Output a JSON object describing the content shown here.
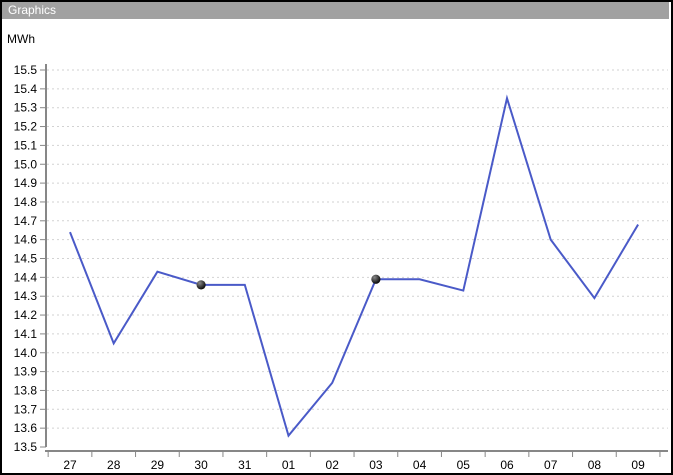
{
  "window": {
    "title": "Graphics",
    "titlebar_color": "#a1a1a1",
    "border_color": "#000000"
  },
  "chart_data": {
    "type": "line",
    "title": "Graphics",
    "unit_label": "MWh",
    "categories": [
      "27",
      "28",
      "29",
      "30",
      "31",
      "01",
      "02",
      "03",
      "04",
      "05",
      "06",
      "07",
      "08",
      "09"
    ],
    "values": [
      14.64,
      14.05,
      14.43,
      14.36,
      14.36,
      13.56,
      13.84,
      14.39,
      14.39,
      14.33,
      15.35,
      14.6,
      14.29,
      14.68
    ],
    "marker_indices": [
      3,
      7
    ],
    "marker_points": [
      {
        "category": "30",
        "value": 14.36
      },
      {
        "category": "03",
        "value": 14.39
      }
    ],
    "ylim": [
      13.5,
      15.5
    ],
    "ytick_step": 0.1,
    "y_tick_labels": [
      "15.5",
      "15.4",
      "15.3",
      "15.2",
      "15.1",
      "15.0",
      "14.9",
      "14.8",
      "14.7",
      "14.6",
      "14.5",
      "14.4",
      "14.3",
      "14.2",
      "14.1",
      "14.0",
      "13.9",
      "13.8",
      "13.7",
      "13.6",
      "13.5"
    ],
    "grid": "horizontal-dotted",
    "legend": "none",
    "line_color": "#4a5ac8",
    "marker_color": "#000000",
    "grid_color": "#d2d2d2",
    "axis_color": "#878787",
    "label_color": "#000000"
  }
}
